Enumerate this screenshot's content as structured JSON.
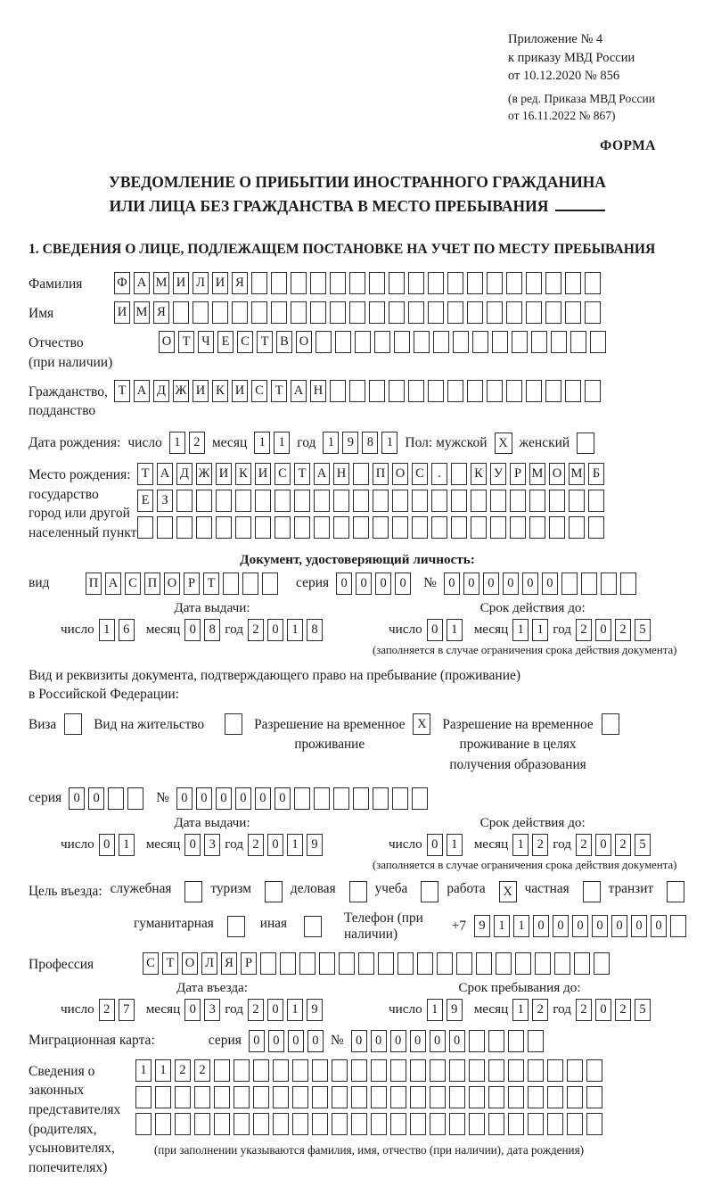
{
  "header": {
    "appendix": "Приложение № 4\nк приказу МВД России\nот 10.12.2020 № 856",
    "revision": "(в ред. Приказа МВД России\nот 16.11.2022 № 867)",
    "form_label": "ФОРМА"
  },
  "title": {
    "line1": "УВЕДОМЛЕНИЕ О ПРИБЫТИИ ИНОСТРАННОГО ГРАЖДАНИНА",
    "line2": "ИЛИ ЛИЦА БЕЗ ГРАЖДАНСТВА В МЕСТО ПРЕБЫВАНИЯ"
  },
  "section1_heading": "1. СВЕДЕНИЯ О ЛИЦЕ, ПОДЛЕЖАЩЕМ ПОСТАНОВКЕ НА УЧЕТ ПО МЕСТУ ПРЕБЫВАНИЯ",
  "date_labels": {
    "day": "число",
    "month": "месяц",
    "year": "год"
  },
  "fields": {
    "surname": {
      "label": "Фамилия",
      "value": "ФАМИЛИЯ",
      "total": 25
    },
    "given_name": {
      "label": "Имя",
      "value": "ИМЯ",
      "total": 25
    },
    "patronymic": {
      "label": "Отчество\n(при наличии)",
      "value": "ОТЧЕСТВО",
      "total": 23
    },
    "citizenship": {
      "label": "Гражданство,\nподданство",
      "value": "ТАДЖИКИСТАН",
      "total": 25
    },
    "birth_date": {
      "label": "Дата рождения:",
      "day": "12",
      "month": "11",
      "year": "1981",
      "sex_label": "Пол: мужской",
      "male_checked": "X",
      "female_label": "женский",
      "female_checked": ""
    },
    "birth_place": {
      "label": "Место рождения:\nгосударство\nгород или другой\nнаселенный пункт",
      "row1": "ТАДЖИКИСТАН ПОС. КУРМОМБ",
      "row2": "ЕЗ",
      "row3": "",
      "total": 24
    },
    "identity_doc": {
      "heading": "Документ, удостоверяющий личность:",
      "kind_label": "вид",
      "kind_value": "ПАСПОРТ",
      "kind_total": 10,
      "series_label": "серия",
      "series_value": "0000",
      "series_total": 4,
      "number_label": "№",
      "number_value": "000000",
      "number_total": 10,
      "issue_header": "Дата выдачи:",
      "issue_day": "16",
      "issue_month": "08",
      "issue_year": "2018",
      "valid_header": "Срок действия до:",
      "valid_day": "01",
      "valid_month": "11",
      "valid_year": "2025",
      "valid_note": "(заполняется в случае ограничения срока действия документа)"
    },
    "resident_doc": {
      "intro": "Вид и реквизиты документа, подтверждающего право на пребывание (проживание)\nв Российской Федерации:",
      "options": [
        {
          "label": "Виза",
          "checked": ""
        },
        {
          "label": "Вид на жительство",
          "checked": ""
        },
        {
          "label": "Разрешение на временное\nпроживание",
          "checked": "X"
        },
        {
          "label": "Разрешение на временное\nпроживание в целях\nполучения образования",
          "checked": ""
        }
      ],
      "series_label": "серия",
      "series_value": "00",
      "series_total": 4,
      "number_label": "№",
      "number_value": "000000",
      "number_total": 13,
      "issue_header": "Дата выдачи:",
      "issue_day": "01",
      "issue_month": "03",
      "issue_year": "2019",
      "valid_header": "Срок действия до:",
      "valid_day": "01",
      "valid_month": "12",
      "valid_year": "2025",
      "valid_note": "(заполняется в случае ограничения срока действия документа)"
    },
    "purpose": {
      "label": "Цель въезда:",
      "options_row1": [
        {
          "label": "служебная",
          "checked": ""
        },
        {
          "label": "туризм",
          "checked": ""
        },
        {
          "label": "деловая",
          "checked": ""
        },
        {
          "label": "учеба",
          "checked": ""
        },
        {
          "label": "работа",
          "checked": "X"
        },
        {
          "label": "частная",
          "checked": ""
        },
        {
          "label": "транзит",
          "checked": ""
        }
      ],
      "options_row2": [
        {
          "label": "гуманитарная",
          "checked": ""
        },
        {
          "label": "иная",
          "checked": ""
        }
      ],
      "phone_label": "Телефон (при наличии)",
      "phone_prefix": "+7",
      "phone_value": "9110000000",
      "phone_total": 11
    },
    "profession": {
      "label": "Профессия",
      "value": "СТОЛЯР",
      "total": 24
    },
    "entry": {
      "entry_header": "Дата въезда:",
      "entry_day": "27",
      "entry_month": "03",
      "entry_year": "2019",
      "stay_header": "Срок пребывания до:",
      "stay_day": "19",
      "stay_month": "12",
      "stay_year": "2025"
    },
    "migration_card": {
      "label": "Миграционная карта:",
      "series_label": "серия",
      "series_value": "0000",
      "series_total": 4,
      "number_label": "№",
      "number_value": "000000",
      "number_total": 10
    },
    "representatives": {
      "label": "Сведения о\nзаконных\nпредставителях\n(родителях,\nусыновителях,\nпопечителях)",
      "row1": "1122",
      "row2": "",
      "row3": "",
      "total": 24,
      "note": "(при заполнении указываются фамилия, имя, отчество (при наличии), дата рождения)"
    }
  },
  "colors": {
    "ink": "#1b1b1b",
    "box_border": "#2c2c2c",
    "background": "#ffffff"
  }
}
